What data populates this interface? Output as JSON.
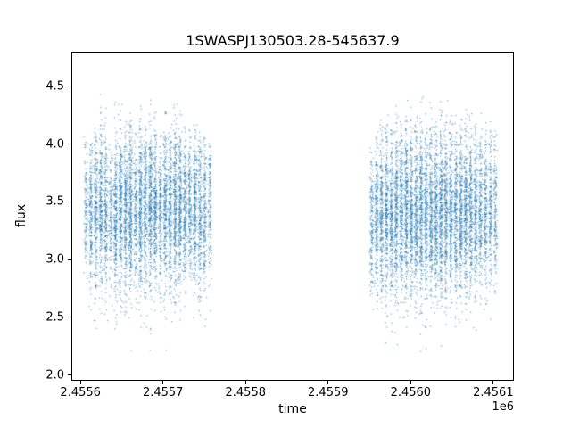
{
  "figure": {
    "background": "#ffffff"
  },
  "chart_data": {
    "type": "scatter",
    "title": "1SWASPJ130503.28-545637.9",
    "xlabel": "time",
    "ylabel": "flux",
    "x_offset_text": "1e6",
    "marker_color": "#1f77b4",
    "marker_size": 1.2,
    "marker_alpha": 0.65,
    "grid": false,
    "legend": null,
    "xlim": [
      2455589,
      2456125
    ],
    "ylim": [
      1.95,
      4.8
    ],
    "x_ticks": {
      "values": [
        2455600,
        2455700,
        2455800,
        2455900,
        2456000,
        2456100
      ],
      "labels": [
        "2.4556",
        "2.4557",
        "2.4558",
        "2.4559",
        "2.4560",
        "2.4561"
      ]
    },
    "y_ticks": {
      "values": [
        2.0,
        2.5,
        3.0,
        3.5,
        4.0,
        4.5
      ],
      "labels": [
        "2.0",
        "2.5",
        "3.0",
        "3.5",
        "4.0",
        "4.5"
      ]
    },
    "stripe_x_spread": 1.8,
    "stripe_format": [
      "x_center_jd",
      "n_points",
      "flux_mean",
      "flux_std",
      "flux_min",
      "flux_max"
    ],
    "stripes": [
      [
        2455606,
        130,
        3.42,
        0.3,
        2.35,
        4.1
      ],
      [
        2455612,
        220,
        3.4,
        0.32,
        2.3,
        4.05
      ],
      [
        2455618,
        260,
        3.44,
        0.34,
        2.25,
        4.15
      ],
      [
        2455624,
        280,
        3.45,
        0.35,
        2.2,
        4.67
      ],
      [
        2455630,
        240,
        3.4,
        0.33,
        2.4,
        4.35
      ],
      [
        2455636,
        150,
        3.38,
        0.3,
        2.5,
        4.1
      ],
      [
        2455642,
        300,
        3.42,
        0.36,
        2.2,
        4.45
      ],
      [
        2455648,
        320,
        3.45,
        0.35,
        2.1,
        4.4
      ],
      [
        2455654,
        300,
        3.42,
        0.34,
        2.3,
        4.25
      ],
      [
        2455660,
        340,
        3.45,
        0.36,
        2.05,
        4.3
      ],
      [
        2455666,
        200,
        3.4,
        0.3,
        2.5,
        4.1
      ],
      [
        2455672,
        320,
        3.44,
        0.36,
        2.2,
        4.35
      ],
      [
        2455678,
        280,
        3.42,
        0.34,
        2.2,
        4.2
      ],
      [
        2455684,
        340,
        3.46,
        0.36,
        2.1,
        4.4
      ],
      [
        2455690,
        300,
        3.44,
        0.34,
        2.3,
        4.3
      ],
      [
        2455696,
        220,
        3.4,
        0.31,
        2.4,
        4.1
      ],
      [
        2455702,
        300,
        3.45,
        0.35,
        2.05,
        4.3
      ],
      [
        2455708,
        280,
        3.43,
        0.33,
        2.3,
        4.2
      ],
      [
        2455714,
        320,
        3.45,
        0.36,
        2.1,
        4.4
      ],
      [
        2455720,
        300,
        3.44,
        0.34,
        2.25,
        4.3
      ],
      [
        2455726,
        260,
        3.42,
        0.33,
        2.35,
        4.2
      ],
      [
        2455732,
        220,
        3.44,
        0.32,
        2.45,
        4.15
      ],
      [
        2455738,
        280,
        3.43,
        0.34,
        2.25,
        4.25
      ],
      [
        2455744,
        240,
        3.42,
        0.33,
        2.35,
        4.2
      ],
      [
        2455750,
        200,
        3.4,
        0.32,
        2.4,
        4.15
      ],
      [
        2455756,
        160,
        3.45,
        0.3,
        2.5,
        4.05
      ],
      [
        2455952,
        180,
        3.35,
        0.33,
        2.4,
        4.05
      ],
      [
        2455958,
        240,
        3.38,
        0.35,
        2.3,
        4.15
      ],
      [
        2455964,
        280,
        3.4,
        0.36,
        2.25,
        4.25
      ],
      [
        2455970,
        300,
        3.38,
        0.36,
        2.2,
        4.3
      ],
      [
        2455976,
        280,
        3.38,
        0.35,
        2.3,
        4.25
      ],
      [
        2455982,
        320,
        3.4,
        0.36,
        2.1,
        4.35
      ],
      [
        2455988,
        300,
        3.38,
        0.35,
        2.2,
        4.25
      ],
      [
        2455994,
        340,
        3.4,
        0.37,
        2.05,
        4.4
      ],
      [
        2456000,
        320,
        3.4,
        0.36,
        2.1,
        4.35
      ],
      [
        2456006,
        300,
        3.38,
        0.35,
        2.2,
        4.3
      ],
      [
        2456012,
        340,
        3.4,
        0.37,
        2.05,
        4.45
      ],
      [
        2456018,
        300,
        3.4,
        0.36,
        2.15,
        4.35
      ],
      [
        2456024,
        320,
        3.42,
        0.36,
        2.1,
        4.4
      ],
      [
        2456030,
        300,
        3.4,
        0.35,
        2.2,
        4.35
      ],
      [
        2456036,
        340,
        3.42,
        0.37,
        2.1,
        4.6
      ],
      [
        2456042,
        320,
        3.4,
        0.36,
        2.15,
        4.45
      ],
      [
        2456048,
        300,
        3.42,
        0.35,
        2.2,
        4.4
      ],
      [
        2456054,
        280,
        3.4,
        0.34,
        2.25,
        4.35
      ],
      [
        2456060,
        320,
        3.42,
        0.36,
        2.1,
        4.45
      ],
      [
        2456066,
        300,
        3.4,
        0.35,
        2.2,
        4.4
      ],
      [
        2456072,
        280,
        3.42,
        0.35,
        2.15,
        4.6
      ],
      [
        2456078,
        260,
        3.4,
        0.34,
        2.25,
        4.4
      ],
      [
        2456084,
        240,
        3.42,
        0.34,
        2.2,
        4.35
      ],
      [
        2456090,
        220,
        3.4,
        0.33,
        2.3,
        4.3
      ],
      [
        2456096,
        200,
        3.42,
        0.33,
        2.25,
        4.3
      ],
      [
        2456102,
        170,
        3.45,
        0.32,
        2.35,
        4.25
      ]
    ]
  }
}
